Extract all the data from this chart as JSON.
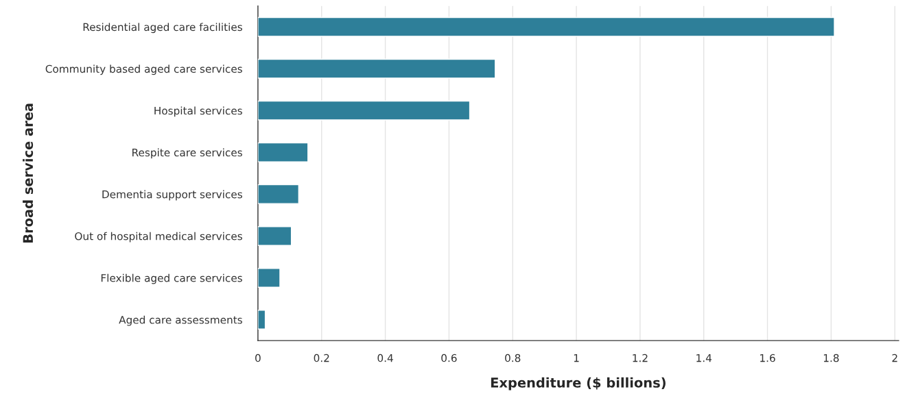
{
  "chart_data": {
    "type": "bar",
    "orientation": "horizontal",
    "xlabel": "Expenditure ($ billions)",
    "ylabel": "Broad service area",
    "categories": [
      "Residential aged care facilities",
      "Community based aged care services",
      "Hospital services",
      "Respite care services",
      "Dementia support services",
      "Out of hospital medical services",
      "Flexible aged care services",
      "Aged care assessments"
    ],
    "values": [
      1.81,
      0.745,
      0.665,
      0.157,
      0.128,
      0.105,
      0.069,
      0.023
    ],
    "color": "#2e7f99",
    "xlim": [
      0,
      2.012
    ],
    "xticks": [
      0,
      0.2,
      0.4,
      0.6,
      0.8,
      1,
      1.2,
      1.4,
      1.6,
      1.8,
      2
    ],
    "grid": "x",
    "legend": false
  }
}
